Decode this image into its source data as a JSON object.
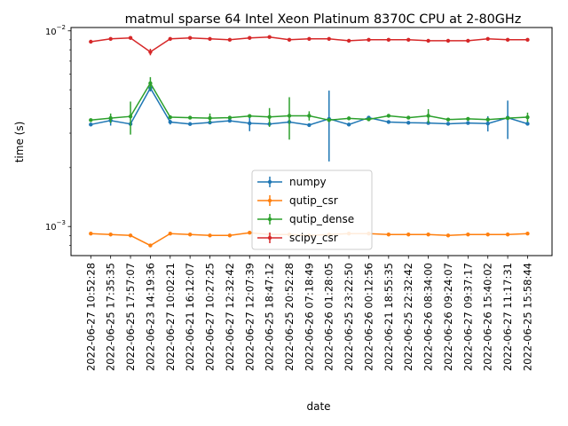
{
  "chart_data": {
    "type": "line",
    "title": "matmul sparse 64 Intel Xeon Platinum 8370C CPU at 2-80GHz",
    "xlabel": "date",
    "ylabel": "time (s)",
    "yscale": "log",
    "ylim": [
      0.00071,
      0.0104
    ],
    "y_tick_labels": [
      {
        "value": 0.001,
        "label": "10−3"
      },
      {
        "value": 0.01,
        "label": "10−2"
      }
    ],
    "grid": false,
    "legend_position": "lower-center",
    "categories": [
      "2022-06-27 10:52:28",
      "2022-06-25 17:35:35",
      "2022-06-25 17:57:07",
      "2022-06-23 14:19:36",
      "2022-06-27 10:02:21",
      "2022-06-21 16:12:07",
      "2022-06-27 10:27:25",
      "2022-06-27 12:32:42",
      "2022-06-27 12:07:39",
      "2022-06-25 18:47:12",
      "2022-06-25 20:52:28",
      "2022-06-26 07:18:49",
      "2022-06-26 01:28:05",
      "2022-06-25 23:22:50",
      "2022-06-26 00:12:56",
      "2022-06-21 18:55:35",
      "2022-06-25 22:32:42",
      "2022-06-26 08:34:00",
      "2022-06-26 09:24:07",
      "2022-06-27 09:37:17",
      "2022-06-26 15:40:02",
      "2022-06-27 11:17:31",
      "2022-06-25 15:58:44"
    ],
    "series": [
      {
        "name": "numpy",
        "color": "#1f77b4",
        "values": [
          0.00332,
          0.00348,
          0.00334,
          0.0051,
          0.00342,
          0.00334,
          0.0034,
          0.00347,
          0.00337,
          0.00334,
          0.00342,
          0.0033,
          0.00355,
          0.00332,
          0.0036,
          0.00342,
          0.00339,
          0.00338,
          0.00335,
          0.00338,
          0.00336,
          0.0036,
          0.00335
        ],
        "errors": [
          5e-05,
          0.0002,
          5e-05,
          0.0002,
          0.0001,
          5e-05,
          5e-05,
          5e-05,
          0.0003,
          5e-05,
          5e-05,
          5e-05,
          0.0014,
          5e-05,
          5e-05,
          5e-05,
          5e-05,
          5e-05,
          5e-05,
          5e-05,
          0.0003,
          0.0008,
          5e-05
        ]
      },
      {
        "name": "qutip_csr",
        "color": "#ff7f0e",
        "values": [
          0.00092,
          0.00091,
          0.0009,
          0.0008,
          0.00092,
          0.00091,
          0.0009,
          0.0009,
          0.00093,
          0.00091,
          0.00091,
          0.0009,
          0.00091,
          0.00092,
          0.00092,
          0.00091,
          0.00091,
          0.00091,
          0.0009,
          0.00091,
          0.00091,
          0.00091,
          0.00092
        ],
        "errors": [
          1e-05,
          1e-05,
          1e-05,
          1e-05,
          1e-05,
          1e-05,
          1e-05,
          1e-05,
          1e-05,
          1e-05,
          1e-05,
          1e-05,
          1e-05,
          1e-05,
          1e-05,
          1e-05,
          1e-05,
          1e-05,
          1e-05,
          1e-05,
          1e-05,
          1e-05,
          1e-05
        ]
      },
      {
        "name": "qutip_dense",
        "color": "#2ca02c",
        "values": [
          0.0035,
          0.00358,
          0.00365,
          0.0054,
          0.00362,
          0.0036,
          0.00358,
          0.0036,
          0.00367,
          0.00363,
          0.00368,
          0.00368,
          0.0035,
          0.00357,
          0.00353,
          0.00368,
          0.0036,
          0.00368,
          0.00352,
          0.00355,
          0.00352,
          0.00358,
          0.00362
        ],
        "errors": [
          5e-05,
          0.0002,
          0.0007,
          0.0004,
          5e-05,
          5e-05,
          0.0002,
          5e-05,
          5e-05,
          0.0004,
          0.0009,
          0.0002,
          5e-05,
          5e-05,
          5e-05,
          5e-05,
          5e-05,
          0.0003,
          5e-05,
          5e-05,
          5e-05,
          5e-05,
          0.0002
        ]
      },
      {
        "name": "scipy_csr",
        "color": "#d62728",
        "values": [
          0.0088,
          0.0091,
          0.0092,
          0.0078,
          0.0091,
          0.0092,
          0.0091,
          0.009,
          0.0092,
          0.0093,
          0.009,
          0.0091,
          0.0091,
          0.0089,
          0.009,
          0.009,
          0.009,
          0.0089,
          0.0089,
          0.0089,
          0.0091,
          0.009,
          0.009
        ],
        "errors": [
          0.0001,
          0.0001,
          0.0001,
          0.0003,
          0.0001,
          0.0001,
          0.0001,
          0.0001,
          0.0001,
          0.0001,
          0.0001,
          0.0001,
          0.0001,
          0.0001,
          0.0001,
          0.0001,
          0.0001,
          0.0001,
          0.0001,
          0.0001,
          0.0001,
          0.0001,
          0.0001
        ]
      }
    ]
  }
}
